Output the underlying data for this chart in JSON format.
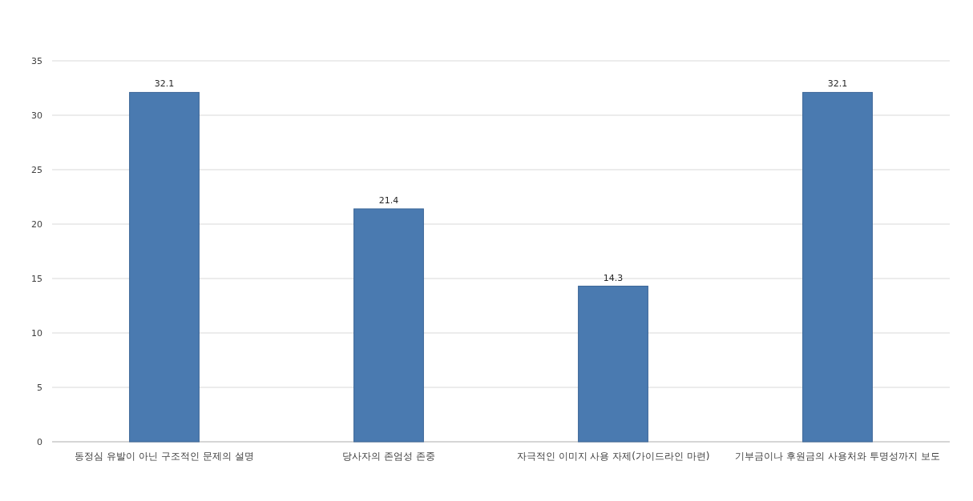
{
  "chart_data": {
    "type": "bar",
    "categories": [
      "동정심 유발이 아닌 구조적인 문제의 설명",
      "당사자의 존엄성 존중",
      "자극적인 이미지 사용 자제(가이드라인 마련)",
      "기부금이나 후원금의 사용처와 투명성까지 보도"
    ],
    "values": [
      32.1,
      21.4,
      14.3,
      32.1
    ],
    "color": "#4a7ab0",
    "ylim": [
      0,
      35
    ],
    "yticks": [
      0,
      5,
      10,
      15,
      20,
      25,
      30,
      35
    ],
    "grid": "y",
    "data_labels": true
  }
}
